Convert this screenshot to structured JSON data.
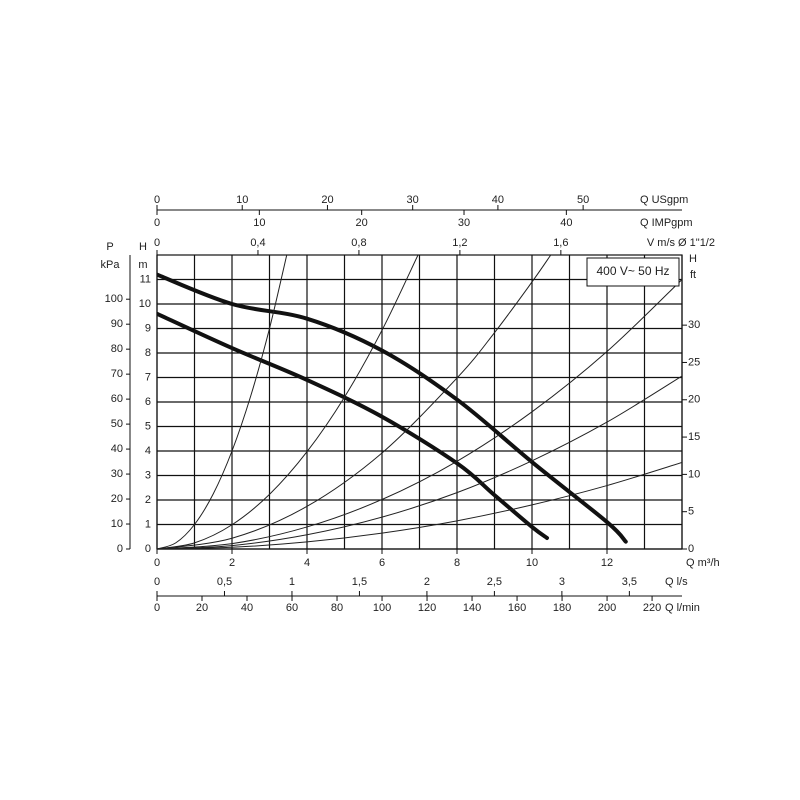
{
  "chart_data": {
    "type": "line",
    "annotation": "400 V~ 50 Hz",
    "xlabel": "Q m³/h",
    "xlim": [
      0,
      14
    ],
    "xticks": [
      0,
      2,
      4,
      6,
      8,
      10,
      12
    ],
    "xgrid": [
      0,
      1,
      2,
      3,
      4,
      5,
      6,
      7,
      8,
      9,
      10,
      11,
      12,
      13,
      14
    ],
    "ylabel": "H",
    "yunit": "m",
    "ylim": [
      0,
      12
    ],
    "yticks": [
      0,
      1,
      2,
      3,
      4,
      5,
      6,
      7,
      8,
      9,
      10,
      11
    ],
    "grid": true,
    "pressure_axis": {
      "label": "P",
      "unit": "kPa",
      "ylim": [
        0,
        117.7
      ],
      "yticks": [
        0,
        10,
        20,
        30,
        40,
        50,
        60,
        70,
        80,
        90,
        100
      ]
    },
    "feet_axis": {
      "label": "H",
      "unit": "ft",
      "ylim": [
        0,
        39.4
      ],
      "yticks": [
        0,
        5,
        10,
        15,
        20,
        25,
        30
      ]
    },
    "top_axes": [
      {
        "label": "Q USgpm",
        "xlim": [
          0,
          61.6
        ],
        "xticks": [
          0,
          10,
          20,
          30,
          40,
          50
        ]
      },
      {
        "label": "Q IMPgpm",
        "xlim": [
          0,
          51.3
        ],
        "xticks": [
          0,
          10,
          20,
          30,
          40
        ]
      },
      {
        "label": "V m/s Ø 1\"1/2",
        "xlim": [
          0,
          2.08
        ],
        "xticks": [
          0,
          {
            "value": 0.4,
            "label": "0,4"
          },
          {
            "value": 0.8,
            "label": "0,8"
          },
          {
            "value": 1.2,
            "label": "1,2"
          },
          {
            "value": 1.6,
            "label": "1,6"
          }
        ]
      }
    ],
    "bottom_axes": [
      {
        "label": "Q l/s",
        "xlim": [
          0,
          3.89
        ],
        "xticks": [
          0,
          {
            "value": 0.5,
            "label": "0,5"
          },
          1,
          {
            "value": 1.5,
            "label": "1,5"
          },
          2,
          {
            "value": 2.5,
            "label": "2,5"
          },
          3,
          {
            "value": 3.5,
            "label": "3,5"
          }
        ]
      },
      {
        "label": "Q l/min",
        "xlim": [
          0,
          233.3
        ],
        "xticks": [
          0,
          20,
          40,
          60,
          80,
          100,
          120,
          140,
          160,
          180,
          200,
          220
        ]
      }
    ],
    "series": [
      {
        "color": "#111111",
        "width": 4,
        "x": [
          0,
          2,
          4,
          6,
          8,
          10,
          12,
          12.5
        ],
        "values": [
          11.2,
          10.0,
          9.4,
          8.1,
          6.1,
          3.55,
          1.1,
          0.3
        ]
      },
      {
        "color": "#111111",
        "width": 4,
        "x": [
          0,
          2,
          4,
          6,
          8,
          9,
          10,
          10.4
        ],
        "values": [
          9.6,
          8.2,
          6.9,
          5.4,
          3.5,
          2.2,
          0.9,
          0.45
        ]
      },
      {
        "color": "#222222",
        "width": 1,
        "x": [
          0,
          0.5,
          1,
          1.5,
          2,
          2.5,
          3,
          3.46
        ],
        "values": [
          0,
          0.25,
          1,
          2.25,
          4,
          6.25,
          9,
          12
        ]
      },
      {
        "color": "#222222",
        "width": 1,
        "x": [
          0,
          1,
          2,
          3,
          4,
          5,
          6,
          6.96
        ],
        "values": [
          0,
          0.25,
          0.99,
          2.23,
          3.97,
          6.2,
          8.93,
          12
        ]
      },
      {
        "color": "#222222",
        "width": 1,
        "x": [
          0,
          2,
          4,
          6,
          8,
          9,
          10,
          10.5
        ],
        "values": [
          0,
          0.44,
          1.74,
          3.92,
          6.98,
          8.83,
          10.9,
          12
        ]
      },
      {
        "color": "#222222",
        "width": 1,
        "x": [
          0,
          2,
          4,
          6,
          8,
          10,
          12,
          14
        ],
        "values": [
          0,
          0.22,
          0.9,
          2.02,
          3.58,
          5.6,
          8.06,
          11
        ]
      },
      {
        "color": "#222222",
        "width": 1,
        "x": [
          0,
          2,
          4,
          6,
          8,
          10,
          12,
          14
        ],
        "values": [
          0,
          0.14,
          0.58,
          1.3,
          2.3,
          3.6,
          5.18,
          7.06
        ]
      },
      {
        "color": "#222222",
        "width": 1,
        "x": [
          0,
          2,
          4,
          6,
          8,
          10,
          12,
          14
        ],
        "values": [
          0,
          0.07,
          0.29,
          0.65,
          1.15,
          1.8,
          2.59,
          3.53
        ]
      }
    ]
  }
}
